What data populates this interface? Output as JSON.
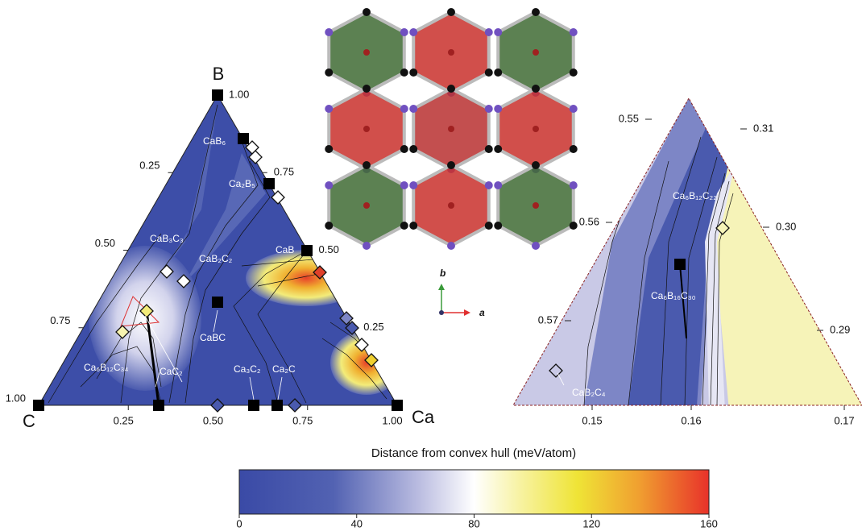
{
  "ternary": {
    "vertex_labels": {
      "top": "B",
      "left": "C",
      "right": "Ca"
    },
    "right_ticks": [
      {
        "value": 1,
        "label": "1.00"
      },
      0.75,
      {
        "value": 0.5,
        "label": "0.50"
      },
      0.25
    ],
    "left_ticks": [
      0.25,
      {
        "value": 0.5,
        "label": "0.50"
      },
      0.75,
      {
        "value": 1,
        "label": "1.00"
      }
    ],
    "bottom_ticks": [
      0.25,
      {
        "value": 0.5,
        "label": "0.50"
      },
      0.75,
      {
        "value": 1,
        "label": "1.00"
      }
    ],
    "phase_labels": [
      "CaB₆",
      "Ca₂B₅",
      "CaB₃C₃",
      "CaB₂C₂",
      "CaB",
      "CaBC",
      "Ca₆B₁₂C₃₄",
      "CaC₂",
      "Ca₃C₂",
      "Ca₂C"
    ]
  },
  "structure": {
    "axis_labels": [
      "b",
      "a"
    ]
  },
  "inset": {
    "left_ticks": [
      0.55,
      0.56,
      0.57
    ],
    "right_ticks": [
      0.31,
      {
        "value": 0.3,
        "label": "0.30"
      },
      0.29
    ],
    "bottom_ticks": [
      0.15,
      0.16,
      0.17
    ],
    "phase_labels": [
      "Ca₆B₁₂C₂₂",
      "Ca₆B₁₆C₃₀",
      "CaB₂C₄"
    ]
  },
  "colorbar": {
    "title": "Distance from convex hull (meV/atom)",
    "lim": [
      0,
      160
    ],
    "ticks": [
      0,
      40,
      80,
      120,
      160
    ]
  }
}
